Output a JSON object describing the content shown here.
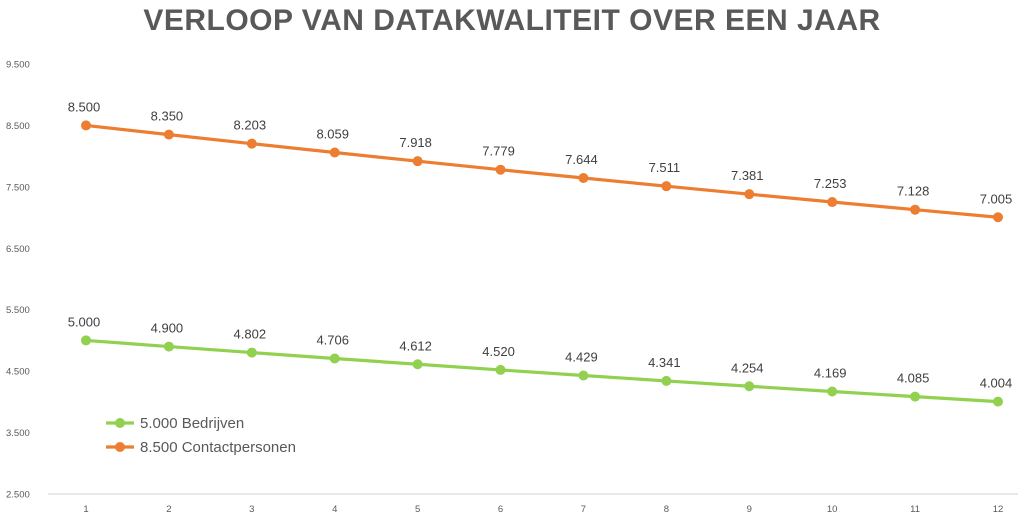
{
  "chart_data": {
    "type": "line",
    "title": "VERLOOP VAN DATAKWALITEIT OVER EEN JAAR",
    "xlabel": "",
    "ylabel": "",
    "x": [
      "1",
      "2",
      "3",
      "4",
      "5",
      "6",
      "7",
      "8",
      "9",
      "10",
      "11",
      "12"
    ],
    "y_ticks": [
      "2.500",
      "3.500",
      "4.500",
      "5.500",
      "6.500",
      "7.500",
      "8.500",
      "9.500"
    ],
    "ylim": [
      2500,
      9500
    ],
    "grid": false,
    "legend_position": "bottom-left",
    "series": [
      {
        "name": "5.000 Bedrijven",
        "color": "#92D050",
        "values": [
          5000,
          4900,
          4802,
          4706,
          4612,
          4520,
          4429,
          4341,
          4254,
          4169,
          4085,
          4004
        ],
        "labels": [
          "5.000",
          "4.900",
          "4.802",
          "4.706",
          "4.612",
          "4.520",
          "4.429",
          "4.341",
          "4.254",
          "4.169",
          "4.085",
          "4.004"
        ]
      },
      {
        "name": "8.500 Contactpersonen",
        "color": "#ED7D31",
        "values": [
          8500,
          8350,
          8203,
          8059,
          7918,
          7779,
          7644,
          7511,
          7381,
          7253,
          7128,
          7005
        ],
        "labels": [
          "8.500",
          "8.350",
          "8.203",
          "8.059",
          "7.918",
          "7.779",
          "7.644",
          "7.511",
          "7.381",
          "7.253",
          "7.128",
          "7.005"
        ]
      }
    ]
  }
}
